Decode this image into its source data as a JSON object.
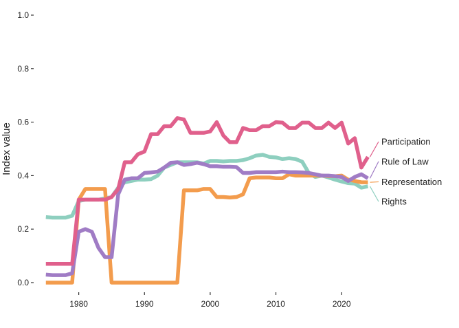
{
  "chart_data": {
    "type": "line",
    "title": "",
    "xlabel": "",
    "ylabel": "Index value",
    "xlim": [
      1974.5,
      2025
    ],
    "ylim": [
      0,
      1
    ],
    "x_ticks": [
      1980,
      1990,
      2000,
      2010,
      2020
    ],
    "x_tick_labels": [
      "1980",
      "1990",
      "2000",
      "2010",
      "2020"
    ],
    "y_ticks": [
      0,
      0.2,
      0.4,
      0.6,
      0.8,
      1.0
    ],
    "y_tick_labels": [
      "0.0",
      "0.2",
      "0.4",
      "0.6",
      "0.8",
      "1.0"
    ],
    "grid": false,
    "legend": "direct labels at line ends (right)",
    "x": [
      1975,
      1976,
      1977,
      1978,
      1979,
      1980,
      1981,
      1982,
      1983,
      1984,
      1985,
      1986,
      1987,
      1988,
      1989,
      1990,
      1991,
      1992,
      1993,
      1994,
      1995,
      1996,
      1997,
      1998,
      1999,
      2000,
      2001,
      2002,
      2003,
      2004,
      2005,
      2006,
      2007,
      2008,
      2009,
      2010,
      2011,
      2012,
      2013,
      2014,
      2015,
      2016,
      2017,
      2018,
      2019,
      2020,
      2021,
      2022,
      2023,
      2024
    ],
    "series": [
      {
        "name": "Participation",
        "color": "#E0608C",
        "values": [
          0.07,
          0.07,
          0.07,
          0.07,
          0.07,
          0.31,
          0.31,
          0.31,
          0.31,
          0.31,
          0.32,
          0.35,
          0.45,
          0.45,
          0.48,
          0.49,
          0.555,
          0.555,
          0.585,
          0.585,
          0.615,
          0.61,
          0.56,
          0.56,
          0.56,
          0.565,
          0.6,
          0.55,
          0.525,
          0.525,
          0.578,
          0.57,
          0.57,
          0.585,
          0.585,
          0.6,
          0.598,
          0.578,
          0.578,
          0.598,
          0.598,
          0.578,
          0.578,
          0.598,
          0.578,
          0.598,
          0.52,
          0.54,
          0.43,
          0.47
        ]
      },
      {
        "name": "Rule of Law",
        "color": "#A07CC5",
        "values": [
          0.03,
          0.028,
          0.028,
          0.028,
          0.035,
          0.19,
          0.2,
          0.19,
          0.13,
          0.095,
          0.095,
          0.33,
          0.385,
          0.39,
          0.39,
          0.41,
          0.412,
          0.415,
          0.43,
          0.448,
          0.45,
          0.44,
          0.443,
          0.448,
          0.443,
          0.435,
          0.435,
          0.433,
          0.433,
          0.432,
          0.41,
          0.41,
          0.413,
          0.413,
          0.413,
          0.413,
          0.415,
          0.413,
          0.413,
          0.412,
          0.41,
          0.405,
          0.4,
          0.4,
          0.398,
          0.395,
          0.38,
          0.395,
          0.405,
          0.39
        ]
      },
      {
        "name": "Representation",
        "color": "#F39C4D",
        "values": [
          0,
          0,
          0,
          0,
          0,
          0.31,
          0.35,
          0.35,
          0.35,
          0.35,
          0,
          0,
          0,
          0,
          0,
          0,
          0,
          0,
          0,
          0,
          0,
          0.345,
          0.345,
          0.345,
          0.35,
          0.35,
          0.32,
          0.32,
          0.318,
          0.32,
          0.33,
          0.39,
          0.393,
          0.393,
          0.393,
          0.39,
          0.39,
          0.405,
          0.4,
          0.4,
          0.4,
          0.4,
          0.4,
          0.398,
          0.398,
          0.4,
          0.385,
          0.38,
          0.375,
          0.375
        ]
      },
      {
        "name": "Rights",
        "color": "#8ECFBF",
        "values": [
          0.245,
          0.243,
          0.243,
          0.243,
          0.25,
          0.305,
          0.31,
          0.31,
          0.31,
          0.315,
          0.32,
          0.355,
          0.375,
          0.38,
          0.385,
          0.385,
          0.387,
          0.4,
          0.43,
          0.44,
          0.45,
          0.45,
          0.45,
          0.45,
          0.445,
          0.455,
          0.455,
          0.453,
          0.455,
          0.455,
          0.458,
          0.465,
          0.475,
          0.478,
          0.47,
          0.468,
          0.462,
          0.465,
          0.462,
          0.452,
          0.41,
          0.395,
          0.4,
          0.393,
          0.385,
          0.378,
          0.372,
          0.37,
          0.355,
          0.36
        ]
      }
    ],
    "labels": [
      {
        "series": "Participation",
        "text": "Participation",
        "label_y": 0.527
      },
      {
        "series": "Rule of Law",
        "text": "Rule of Law",
        "label_y": 0.453
      },
      {
        "series": "Representation",
        "text": "Representation",
        "label_y": 0.377
      },
      {
        "series": "Rights",
        "text": "Rights",
        "label_y": 0.303
      }
    ]
  }
}
